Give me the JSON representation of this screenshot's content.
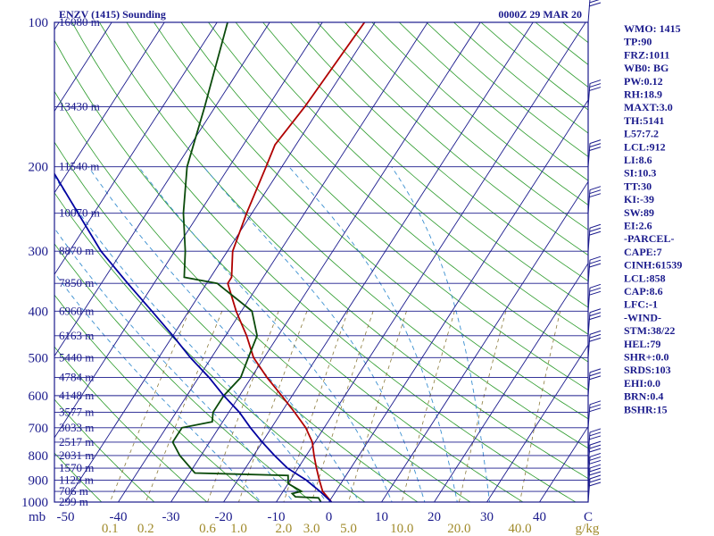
{
  "header": {
    "title": "ENZV (1415) Sounding",
    "datetime": "0000Z 29 MAR 20"
  },
  "chart_data": {
    "type": "line",
    "title": "ENZV (1415) Sounding",
    "xlabel": "",
    "ylabel": "mb",
    "x_unit": "C",
    "mixing_unit": "g/kg",
    "pressure_range": [
      1000,
      100
    ],
    "temp_range_at_1000mb": [
      -50,
      50
    ],
    "pressure_ticks": [
      100,
      200,
      300,
      400,
      500,
      600,
      700,
      800,
      900,
      1000
    ],
    "pressure_axis_labels": [
      "100",
      "200",
      "300",
      "400",
      "500",
      "600",
      "700",
      "800",
      "900",
      "1000"
    ],
    "mb_label": "mb",
    "temp_ticks": [
      -50,
      -40,
      -30,
      -20,
      -10,
      0,
      10,
      20,
      30,
      40
    ],
    "temp_tick_labels": [
      "-50",
      "-40",
      "-30",
      "-20",
      "-10",
      "0",
      "10",
      "20",
      "30",
      "40"
    ],
    "mixing_ratio_labels": [
      "0.1",
      "0.2",
      "0.6",
      "1.0",
      "2.0",
      "3.0",
      "5.0",
      "10.0",
      "20.0",
      "40.0"
    ],
    "mixing_ratio_values": [
      0.1,
      0.2,
      0.6,
      1.0,
      2.0,
      3.0,
      5.0,
      10.0,
      20.0,
      40.0
    ],
    "height_levels": [
      {
        "p": 100,
        "label": "16080 m"
      },
      {
        "p": 150,
        "label": "13430 m"
      },
      {
        "p": 200,
        "label": "11540 m"
      },
      {
        "p": 250,
        "label": "10070 m"
      },
      {
        "p": 300,
        "label": "8870 m"
      },
      {
        "p": 350,
        "label": "7850 m"
      },
      {
        "p": 400,
        "label": "6960 m"
      },
      {
        "p": 450,
        "label": "6163 m"
      },
      {
        "p": 500,
        "label": "5440 m"
      },
      {
        "p": 550,
        "label": "4784 m"
      },
      {
        "p": 600,
        "label": "4148 m"
      },
      {
        "p": 650,
        "label": "3577 m"
      },
      {
        "p": 700,
        "label": "3033 m"
      },
      {
        "p": 750,
        "label": "2517 m"
      },
      {
        "p": 800,
        "label": "2031 m"
      },
      {
        "p": 850,
        "label": "1570 m"
      },
      {
        "p": 900,
        "label": "1129 m"
      },
      {
        "p": 950,
        "label": "706 m"
      },
      {
        "p": 1000,
        "label": "299 m"
      }
    ],
    "series": [
      {
        "name": "Temperature",
        "color": "#b00000",
        "points": [
          {
            "p": 1000,
            "t": 0.5
          },
          {
            "p": 950,
            "t": -2.5
          },
          {
            "p": 900,
            "t": -4.5
          },
          {
            "p": 850,
            "t": -6.5
          },
          {
            "p": 800,
            "t": -8.5
          },
          {
            "p": 750,
            "t": -10.5
          },
          {
            "p": 700,
            "t": -13.5
          },
          {
            "p": 650,
            "t": -17.5
          },
          {
            "p": 600,
            "t": -22
          },
          {
            "p": 550,
            "t": -27
          },
          {
            "p": 500,
            "t": -32
          },
          {
            "p": 450,
            "t": -36
          },
          {
            "p": 400,
            "t": -41
          },
          {
            "p": 350,
            "t": -46
          },
          {
            "p": 340,
            "t": -46
          },
          {
            "p": 300,
            "t": -49
          },
          {
            "p": 250,
            "t": -51
          },
          {
            "p": 200,
            "t": -53
          },
          {
            "p": 180,
            "t": -54
          },
          {
            "p": 150,
            "t": -53
          },
          {
            "p": 100,
            "t": -52
          }
        ]
      },
      {
        "name": "Dewpoint",
        "color": "#0a4a0a",
        "points": [
          {
            "p": 1000,
            "t": -1.5
          },
          {
            "p": 980,
            "t": -2.5
          },
          {
            "p": 975,
            "t": -7
          },
          {
            "p": 960,
            "t": -8
          },
          {
            "p": 950,
            "t": -6.5
          },
          {
            "p": 925,
            "t": -9
          },
          {
            "p": 915,
            "t": -10
          },
          {
            "p": 880,
            "t": -11
          },
          {
            "p": 870,
            "t": -29
          },
          {
            "p": 800,
            "t": -34
          },
          {
            "p": 750,
            "t": -37
          },
          {
            "p": 700,
            "t": -37
          },
          {
            "p": 680,
            "t": -32
          },
          {
            "p": 650,
            "t": -33
          },
          {
            "p": 600,
            "t": -33
          },
          {
            "p": 550,
            "t": -32
          },
          {
            "p": 500,
            "t": -33
          },
          {
            "p": 450,
            "t": -34
          },
          {
            "p": 400,
            "t": -38
          },
          {
            "p": 350,
            "t": -48
          },
          {
            "p": 340,
            "t": -55
          },
          {
            "p": 300,
            "t": -58
          },
          {
            "p": 250,
            "t": -63
          },
          {
            "p": 200,
            "t": -68
          },
          {
            "p": 150,
            "t": -72
          },
          {
            "p": 100,
            "t": -78
          }
        ]
      },
      {
        "name": "Parcel",
        "color": "#0000a0",
        "points": [
          {
            "p": 1000,
            "t": 0.5
          },
          {
            "p": 950,
            "t": -3
          },
          {
            "p": 900,
            "t": -7
          },
          {
            "p": 850,
            "t": -12
          },
          {
            "p": 800,
            "t": -16
          },
          {
            "p": 750,
            "t": -20
          },
          {
            "p": 700,
            "t": -24
          },
          {
            "p": 650,
            "t": -28
          },
          {
            "p": 600,
            "t": -33
          },
          {
            "p": 550,
            "t": -38
          },
          {
            "p": 500,
            "t": -44
          },
          {
            "p": 450,
            "t": -50
          },
          {
            "p": 400,
            "t": -57
          },
          {
            "p": 350,
            "t": -65
          },
          {
            "p": 300,
            "t": -74
          },
          {
            "p": 250,
            "t": -83
          },
          {
            "p": 200,
            "t": -94
          },
          {
            "p": 150,
            "t": -107
          },
          {
            "p": 100,
            "t": -125
          }
        ]
      }
    ],
    "wind_barb_levels": [
      100,
      150,
      200,
      250,
      300,
      350,
      400,
      450,
      500,
      600,
      700,
      800,
      850,
      900,
      950,
      1000
    ],
    "grid": true
  },
  "indices": [
    "WMO: 1415",
    "TP:90",
    "FRZ:1011",
    "WB0: BG",
    "PW:0.12",
    "RH:18.9",
    "MAXT:3.0",
    "TH:5141",
    "L57:7.2",
    "LCL:912",
    "LI:8.6",
    "SI:10.3",
    "TT:30",
    "KI:-39",
    "SW:89",
    "EI:2.6",
    "-PARCEL-",
    "CAPE:7",
    "CINH:61539",
    "LCL:858",
    "CAP:8.6",
    "LFC:-1",
    "-WIND-",
    "STM:38/22",
    "HEL:79",
    "SHR+:0.0",
    "SRDS:103",
    "EHI:0.0",
    "BRN:0.4",
    "BSHR:15"
  ],
  "colors": {
    "frame": "#1a1a8c",
    "isotherm": "#1a1a8c",
    "isobar": "#1a1a8c",
    "dry_adiabat": "#2a9a2a",
    "moist_adiabat": "#3a8fd0",
    "mixing_ratio": "#8a7a3a",
    "temperature": "#b00000",
    "dewpoint": "#0a4a0a",
    "parcel": "#0000a0",
    "mixing_label": "#a08a2a"
  }
}
